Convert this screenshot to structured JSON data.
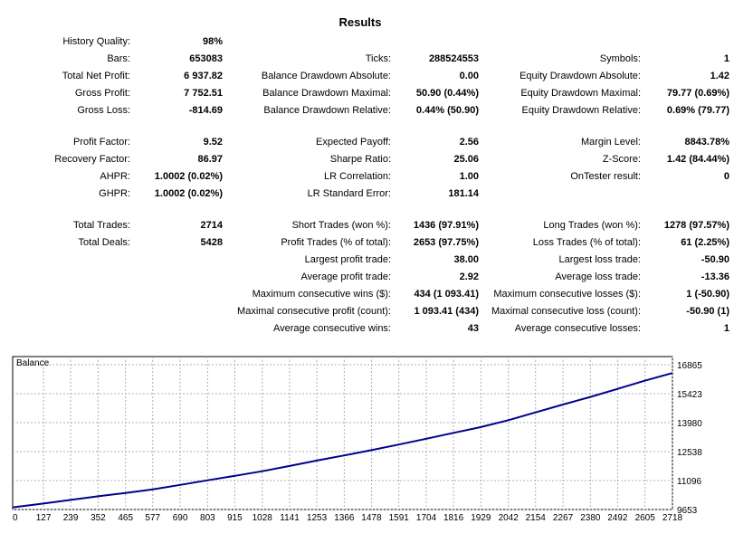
{
  "title": "Results",
  "rows": [
    [
      {
        "label": "History Quality:",
        "value": "98%"
      },
      null,
      null
    ],
    [
      {
        "label": "Bars:",
        "value": "653083"
      },
      {
        "label": "Ticks:",
        "value": "288524553"
      },
      {
        "label": "Symbols:",
        "value": "1"
      }
    ],
    [
      {
        "label": "Total Net Profit:",
        "value": "6 937.82"
      },
      {
        "label": "Balance Drawdown Absolute:",
        "value": "0.00"
      },
      {
        "label": "Equity Drawdown Absolute:",
        "value": "1.42"
      }
    ],
    [
      {
        "label": "Gross Profit:",
        "value": "7 752.51"
      },
      {
        "label": "Balance Drawdown Maximal:",
        "value": "50.90 (0.44%)"
      },
      {
        "label": "Equity Drawdown Maximal:",
        "value": "79.77 (0.69%)"
      }
    ],
    [
      {
        "label": "Gross Loss:",
        "value": "-814.69"
      },
      {
        "label": "Balance Drawdown Relative:",
        "value": "0.44% (50.90)"
      },
      {
        "label": "Equity Drawdown Relative:",
        "value": "0.69% (79.77)"
      }
    ],
    [
      {
        "label": "Profit Factor:",
        "value": "9.52"
      },
      {
        "label": "Expected Payoff:",
        "value": "2.56"
      },
      {
        "label": "Margin Level:",
        "value": "8843.78%"
      }
    ],
    [
      {
        "label": "Recovery Factor:",
        "value": "86.97"
      },
      {
        "label": "Sharpe Ratio:",
        "value": "25.06"
      },
      {
        "label": "Z-Score:",
        "value": "1.42 (84.44%)"
      }
    ],
    [
      {
        "label": "AHPR:",
        "value": "1.0002 (0.02%)"
      },
      {
        "label": "LR Correlation:",
        "value": "1.00"
      },
      {
        "label": "OnTester result:",
        "value": "0"
      }
    ],
    [
      {
        "label": "GHPR:",
        "value": "1.0002 (0.02%)"
      },
      {
        "label": "LR Standard Error:",
        "value": "181.14"
      },
      null
    ],
    [
      {
        "label": "Total Trades:",
        "value": "2714"
      },
      {
        "label": "Short Trades (won %):",
        "value": "1436 (97.91%)"
      },
      {
        "label": "Long Trades (won %):",
        "value": "1278 (97.57%)"
      }
    ],
    [
      {
        "label": "Total Deals:",
        "value": "5428"
      },
      {
        "label": "Profit Trades (% of total):",
        "value": "2653 (97.75%)"
      },
      {
        "label": "Loss Trades (% of total):",
        "value": "61 (2.25%)"
      }
    ],
    [
      null,
      {
        "label": "Largest profit trade:",
        "value": "38.00"
      },
      {
        "label": "Largest loss trade:",
        "value": "-50.90"
      }
    ],
    [
      null,
      {
        "label": "Average profit trade:",
        "value": "2.92"
      },
      {
        "label": "Average loss trade:",
        "value": "-13.36"
      }
    ],
    [
      null,
      {
        "label": "Maximum consecutive wins ($):",
        "value": "434 (1 093.41)"
      },
      {
        "label": "Maximum consecutive losses ($):",
        "value": "1 (-50.90)"
      }
    ],
    [
      null,
      {
        "label": "Maximal consecutive profit (count):",
        "value": "1 093.41 (434)"
      },
      {
        "label": "Maximal consecutive loss (count):",
        "value": "-50.90 (1)"
      }
    ],
    [
      null,
      {
        "label": "Average consecutive wins:",
        "value": "43"
      },
      {
        "label": "Average consecutive losses:",
        "value": "1"
      }
    ]
  ],
  "chart_data": {
    "type": "line",
    "title": "Balance",
    "xlabel": "",
    "ylabel": "",
    "x_ticks": [
      "0",
      "127",
      "239",
      "352",
      "465",
      "577",
      "690",
      "803",
      "915",
      "1028",
      "1141",
      "1253",
      "1366",
      "1478",
      "1591",
      "1704",
      "1816",
      "1929",
      "2042",
      "2154",
      "2267",
      "2380",
      "2492",
      "2605",
      "2718"
    ],
    "y_ticks": [
      "16865",
      "15423",
      "13980",
      "12538",
      "11096",
      "9653"
    ],
    "ylim": [
      9653,
      16865
    ],
    "xlim": [
      0,
      2718
    ],
    "grid": true,
    "series": [
      {
        "color": "#00008b",
        "x": [
          0,
          127,
          239,
          352,
          465,
          577,
          690,
          803,
          915,
          1028,
          1141,
          1253,
          1366,
          1478,
          1591,
          1704,
          1816,
          1929,
          2042,
          2154,
          2267,
          2380,
          2492,
          2605,
          2718
        ],
        "y": [
          9760,
          9950,
          10130,
          10310,
          10480,
          10660,
          10880,
          11110,
          11330,
          11560,
          11820,
          12090,
          12350,
          12610,
          12890,
          13180,
          13470,
          13760,
          14100,
          14490,
          14880,
          15260,
          15660,
          16070,
          16450
        ]
      }
    ]
  }
}
